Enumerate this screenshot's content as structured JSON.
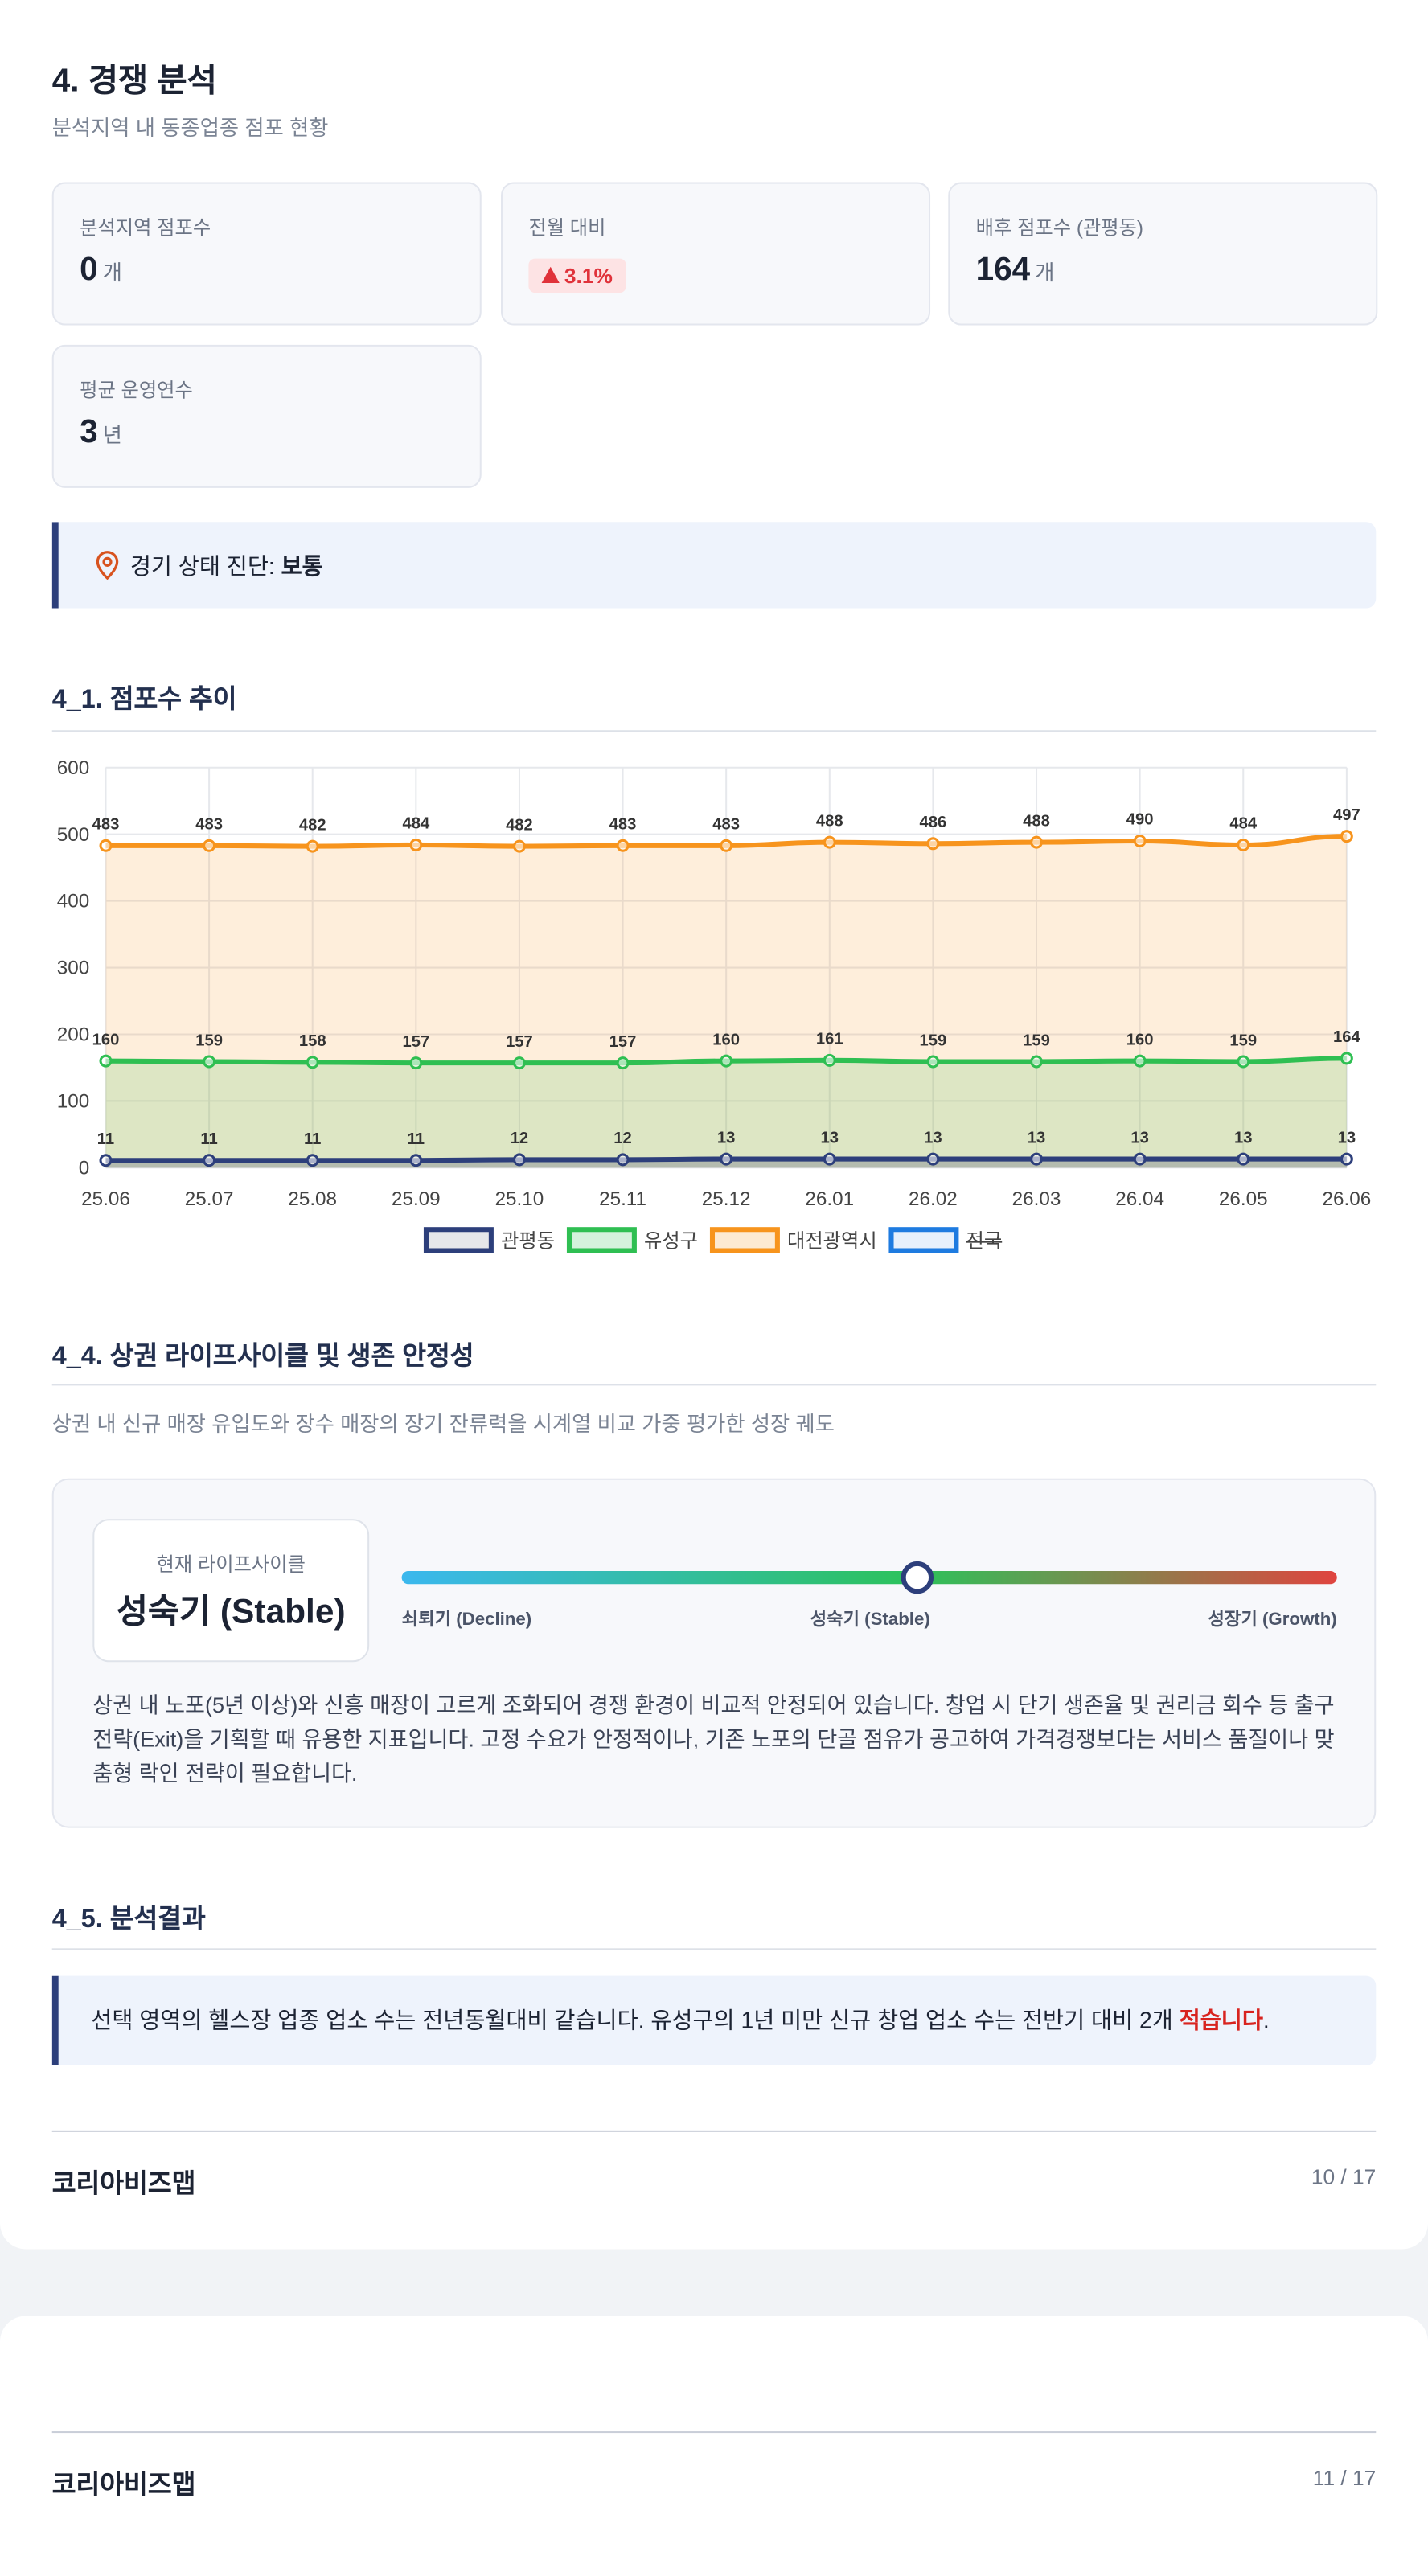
{
  "header": {
    "title": "4. 경쟁 분석",
    "subtitle": "분석지역 내 동종업종 점포 현황"
  },
  "kpis": [
    {
      "label": "분석지역 점포수",
      "value": 0,
      "unit": "개"
    },
    {
      "label": "전월 대비",
      "change": "3.1%"
    },
    {
      "label": "배후 점포수 (관평동)",
      "value": 164,
      "unit": "개"
    },
    {
      "label": "평균 운영연수",
      "value": 3,
      "unit": "년"
    }
  ],
  "diagnosis": {
    "label": "경기 상태 진단: ",
    "value": "보통"
  },
  "section_trend": {
    "title": "4_1. 점포수 추이"
  },
  "chart_data": {
    "type": "line",
    "categories": [
      "25.06",
      "25.07",
      "25.08",
      "25.09",
      "25.10",
      "25.11",
      "25.12",
      "26.01",
      "26.02",
      "26.03",
      "26.04",
      "26.05",
      "26.06"
    ],
    "ylim": [
      0,
      600
    ],
    "yticks": [
      0,
      100,
      200,
      300,
      400,
      500,
      600
    ],
    "grid": true,
    "area": true,
    "legend": "bottom",
    "series": [
      {
        "name": "관평동",
        "color": "#2d3f7b",
        "values": [
          11,
          11,
          11,
          11,
          12,
          12,
          13,
          13,
          13,
          13,
          13,
          13,
          13
        ]
      },
      {
        "name": "유성구",
        "color": "#2fbf52",
        "values": [
          160,
          159,
          158,
          157,
          157,
          157,
          160,
          161,
          159,
          159,
          160,
          159,
          164
        ]
      },
      {
        "name": "대전광역시",
        "color": "#f7941d",
        "values": [
          483,
          483,
          482,
          484,
          482,
          483,
          483,
          488,
          486,
          488,
          490,
          484,
          497
        ]
      },
      {
        "name": "전국",
        "color": "#1e7be0",
        "hidden": true
      }
    ]
  },
  "lifecycle": {
    "title": "4_4. 상권 라이프사이클 및 생존 안정성",
    "description": "상권 내 신규 매장 유입도와 장수 매장의 장기 잔류력을 시계열 비교 가중 평가한 성장 궤도",
    "current_label": "현재 라이프사이클",
    "current": "성숙기 (Stable)",
    "stages": [
      "쇠퇴기 (Decline)",
      "성숙기 (Stable)",
      "성장기 (Growth)"
    ],
    "text": "상권 내 노포(5년 이상)와 신흥 매장이 고르게 조화되어 경쟁 환경이 비교적 안정되어 있습니다. 창업 시 단기 생존율 및 권리금 회수 등 출구 전략(Exit)을 기획할 때 유용한 지표입니다. 고정 수요가 안정적이나, 기존 노포의 단골 점유가 공고하여 가격경쟁보다는 서비스 품질이나 맞춤형 락인 전략이 필요합니다."
  },
  "result": {
    "title": "4_5. 분석결과",
    "parts": [
      "선택 영역의 헬스장 업종 업소 수는 전년동월대비 같습니다. 유성구의 1년 미만 신규 창업 업소 수는 전반기 대비 2개 ",
      "적습니다",
      "."
    ]
  },
  "footers": [
    {
      "brand": "코리아비즈맵",
      "page": "10 / 17"
    },
    {
      "brand": "코리아비즈맵",
      "page": "11 / 17"
    }
  ]
}
